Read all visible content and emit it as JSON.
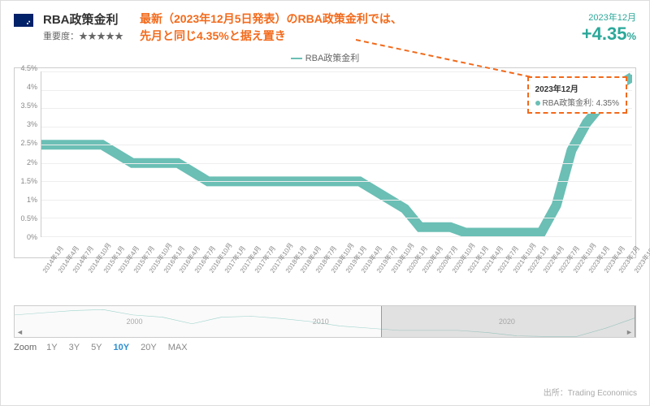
{
  "header": {
    "title": "RBA政策金利",
    "importance_label": "重要度：",
    "importance_stars": "★★★★★",
    "annotation_line1": "最新（2023年12月5日発表）のRBA政策金利では、",
    "annotation_line2": "先月と同じ4.35%と据え置き",
    "date": "2023年12月",
    "rate": "+4.35",
    "rate_unit": "%"
  },
  "legend": {
    "series": "RBA政策金利"
  },
  "chart": {
    "type": "line",
    "series_color": "#6bbfb5",
    "line_width": 2,
    "background_color": "#ffffff",
    "grid_color": "#eeeeee",
    "border_color": "#cccccc",
    "ylim": [
      0,
      4.5
    ],
    "ytick_step": 0.5,
    "yticks": [
      "0%",
      "0.5%",
      "1%",
      "1.5%",
      "2%",
      "2.5%",
      "3%",
      "3.5%",
      "4%",
      "4.5%"
    ],
    "xticks": [
      "2014年1月",
      "2014年4月",
      "2014年7月",
      "2014年10月",
      "2015年1月",
      "2015年4月",
      "2015年7月",
      "2015年10月",
      "2016年1月",
      "2016年4月",
      "2016年7月",
      "2016年10月",
      "2017年1月",
      "2017年4月",
      "2017年7月",
      "2017年10月",
      "2018年1月",
      "2018年4月",
      "2018年7月",
      "2018年10月",
      "2019年1月",
      "2019年4月",
      "2019年7月",
      "2019年10月",
      "2020年1月",
      "2020年4月",
      "2020年7月",
      "2020年10月",
      "2021年1月",
      "2021年4月",
      "2021年7月",
      "2021年10月",
      "2022年1月",
      "2022年4月",
      "2022年7月",
      "2022年10月",
      "2023年1月",
      "2023年4月",
      "2023年7月",
      "2023年10月"
    ],
    "values": [
      2.5,
      2.5,
      2.5,
      2.5,
      2.5,
      2.25,
      2.0,
      2.0,
      2.0,
      2.0,
      1.75,
      1.5,
      1.5,
      1.5,
      1.5,
      1.5,
      1.5,
      1.5,
      1.5,
      1.5,
      1.5,
      1.5,
      1.25,
      1.0,
      0.75,
      0.25,
      0.25,
      0.25,
      0.1,
      0.1,
      0.1,
      0.1,
      0.1,
      0.1,
      0.85,
      2.35,
      3.1,
      3.6,
      4.1,
      4.35
    ],
    "tooltip": {
      "title": "2023年12月",
      "series": "RBA政策金利: 4.35%"
    }
  },
  "minimap": {
    "years": [
      "2000",
      "2010",
      "2020"
    ],
    "handle_start_pct": 59,
    "handle_width_pct": 41
  },
  "zoom": {
    "label": "Zoom",
    "options": [
      "1Y",
      "3Y",
      "5Y",
      "10Y",
      "20Y",
      "MAX"
    ],
    "active": "10Y"
  },
  "source": "出所：Trading Economics",
  "colors": {
    "accent_orange": "#f26a1b",
    "accent_teal": "#2ba89a",
    "link_blue": "#2b8fd1"
  }
}
